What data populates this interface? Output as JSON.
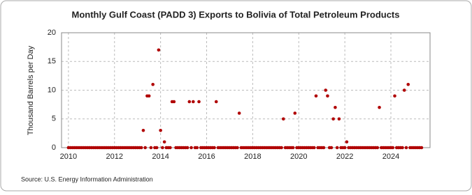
{
  "chart_data": {
    "type": "scatter",
    "title": "Monthly Gulf Coast (PADD 3) Exports to Bolivia of Total Petroleum Products",
    "y_label": "Thousand Barrels per Day",
    "source": "Source: U.S. Energy Information Administration",
    "color": "#b00000",
    "grid": true,
    "xlim": [
      2009.7,
      2025.7
    ],
    "xticks": [
      2010,
      2012,
      2014,
      2016,
      2018,
      2020,
      2022,
      2024
    ],
    "ylim": [
      0,
      20
    ],
    "yticks": [
      0,
      5,
      10,
      15,
      20
    ],
    "x": [
      "2010-01",
      "2010-02",
      "2010-03",
      "2010-04",
      "2010-05",
      "2010-06",
      "2010-07",
      "2010-08",
      "2010-09",
      "2010-10",
      "2010-11",
      "2010-12",
      "2011-01",
      "2011-02",
      "2011-03",
      "2011-04",
      "2011-05",
      "2011-06",
      "2011-07",
      "2011-08",
      "2011-09",
      "2011-10",
      "2011-11",
      "2011-12",
      "2012-01",
      "2012-02",
      "2012-03",
      "2012-04",
      "2012-05",
      "2012-06",
      "2012-07",
      "2012-08",
      "2012-09",
      "2012-10",
      "2012-11",
      "2012-12",
      "2013-01",
      "2013-02",
      "2013-03",
      "2013-04",
      "2013-05",
      "2013-06",
      "2013-07",
      "2013-08",
      "2013-09",
      "2013-10",
      "2013-11",
      "2013-12",
      "2014-01",
      "2014-02",
      "2014-03",
      "2014-04",
      "2014-05",
      "2014-06",
      "2014-07",
      "2014-08",
      "2014-09",
      "2014-10",
      "2014-11",
      "2014-12",
      "2015-01",
      "2015-02",
      "2015-03",
      "2015-04",
      "2015-05",
      "2015-06",
      "2015-07",
      "2015-08",
      "2015-09",
      "2015-10",
      "2015-11",
      "2015-12",
      "2016-01",
      "2016-02",
      "2016-03",
      "2016-04",
      "2016-05",
      "2016-06",
      "2016-07",
      "2016-08",
      "2016-09",
      "2016-10",
      "2016-11",
      "2016-12",
      "2017-01",
      "2017-02",
      "2017-03",
      "2017-04",
      "2017-05",
      "2017-06",
      "2017-07",
      "2017-08",
      "2017-09",
      "2017-10",
      "2017-11",
      "2017-12",
      "2018-01",
      "2018-02",
      "2018-03",
      "2018-04",
      "2018-05",
      "2018-06",
      "2018-07",
      "2018-08",
      "2018-09",
      "2018-10",
      "2018-11",
      "2018-12",
      "2019-01",
      "2019-02",
      "2019-03",
      "2019-04",
      "2019-05",
      "2019-06",
      "2019-07",
      "2019-08",
      "2019-09",
      "2019-10",
      "2019-11",
      "2019-12",
      "2020-01",
      "2020-02",
      "2020-03",
      "2020-04",
      "2020-05",
      "2020-06",
      "2020-07",
      "2020-08",
      "2020-09",
      "2020-10",
      "2020-11",
      "2020-12",
      "2021-01",
      "2021-02",
      "2021-03",
      "2021-04",
      "2021-05",
      "2021-06",
      "2021-07",
      "2021-08",
      "2021-09",
      "2021-10",
      "2021-11",
      "2021-12",
      "2022-01",
      "2022-02",
      "2022-03",
      "2022-04",
      "2022-05",
      "2022-06",
      "2022-07",
      "2022-08",
      "2022-09",
      "2022-10",
      "2022-11",
      "2022-12",
      "2023-01",
      "2023-02",
      "2023-03",
      "2023-04",
      "2023-05",
      "2023-06",
      "2023-07",
      "2023-08",
      "2023-09",
      "2023-10",
      "2023-11",
      "2023-12",
      "2024-01",
      "2024-02",
      "2024-03",
      "2024-04",
      "2024-05",
      "2024-06",
      "2024-07",
      "2024-08",
      "2024-09",
      "2024-10",
      "2024-11",
      "2024-12",
      "2025-01",
      "2025-02",
      "2025-03",
      "2025-04",
      "2025-05"
    ],
    "values": [
      0,
      0,
      0,
      0,
      0,
      0,
      0,
      0,
      0,
      0,
      0,
      0,
      0,
      0,
      0,
      0,
      0,
      0,
      0,
      0,
      0,
      0,
      0,
      0,
      0,
      0,
      0,
      0,
      0,
      0,
      0,
      0,
      0,
      0,
      0,
      0,
      0,
      0,
      0,
      3,
      0,
      9,
      9,
      0,
      11,
      0,
      0,
      17,
      3,
      0,
      1,
      0,
      0,
      0,
      8,
      8,
      0,
      0,
      0,
      0,
      0,
      0,
      0,
      8,
      0,
      8,
      0,
      0,
      8,
      0,
      0,
      0,
      0,
      0,
      0,
      0,
      0,
      8,
      0,
      0,
      0,
      0,
      0,
      0,
      0,
      0,
      0,
      0,
      0,
      6,
      0,
      0,
      0,
      0,
      0,
      0,
      0,
      0,
      0,
      0,
      0,
      0,
      0,
      0,
      0,
      0,
      0,
      0,
      0,
      0,
      0,
      0,
      5,
      0,
      0,
      0,
      0,
      0,
      6,
      0,
      0,
      0,
      0,
      0,
      0,
      0,
      0,
      0,
      0,
      9,
      0,
      0,
      0,
      0,
      10,
      9,
      0,
      0,
      5,
      7,
      0,
      5,
      0,
      0,
      0,
      1,
      0,
      0,
      0,
      0,
      0,
      0,
      0,
      0,
      0,
      0,
      0,
      0,
      0,
      0,
      0,
      0,
      7,
      0,
      0,
      0,
      0,
      0,
      0,
      0,
      9,
      0,
      0,
      0,
      0,
      10,
      0,
      11,
      0,
      0,
      0,
      0,
      0,
      0,
      0
    ]
  }
}
